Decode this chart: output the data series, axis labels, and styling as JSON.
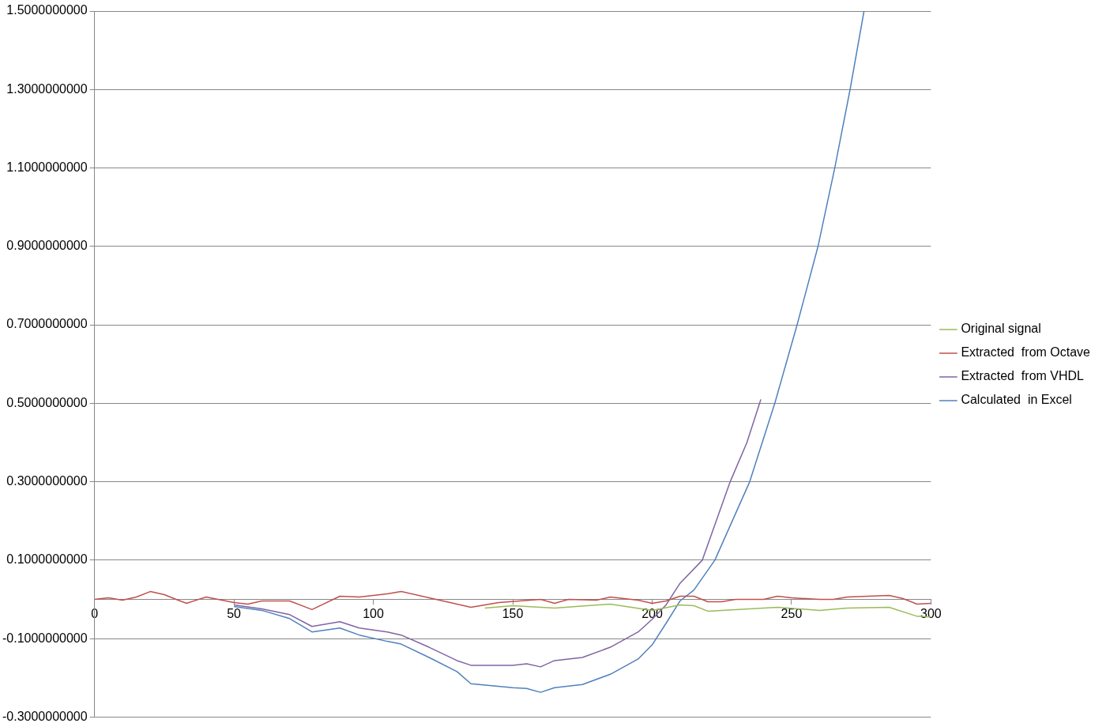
{
  "chart_data": {
    "type": "line",
    "xlim": [
      0,
      300
    ],
    "xticks": [
      0,
      50,
      100,
      150,
      200,
      250,
      300
    ],
    "ylim": [
      -0.3,
      1.5
    ],
    "yticks": [
      {
        "value": -0.3,
        "label": "-0.3000000000"
      },
      {
        "value": -0.1,
        "label": "-0.1000000000"
      },
      {
        "value": 0.1,
        "label": "0.1000000000"
      },
      {
        "value": 0.3,
        "label": "0.3000000000"
      },
      {
        "value": 0.5,
        "label": "0.5000000000"
      },
      {
        "value": 0.7,
        "label": "0.7000000000"
      },
      {
        "value": 0.9,
        "label": "0.9000000000"
      },
      {
        "value": 1.1,
        "label": "1.1000000000"
      },
      {
        "value": 1.3,
        "label": "1.3000000000"
      },
      {
        "value": 1.5,
        "label": "1.5000000000"
      }
    ],
    "grid": "y",
    "legend": "right",
    "marker": "none",
    "line_style": "solid",
    "series": [
      {
        "name": "Original signal",
        "color": "#9bbb59",
        "x": [
          140,
          150,
          165,
          185,
          200,
          210,
          215,
          220,
          230,
          245,
          260,
          270,
          285,
          295,
          300
        ],
        "values": [
          -0.022,
          -0.016,
          -0.022,
          -0.012,
          -0.028,
          -0.014,
          -0.016,
          -0.03,
          -0.026,
          -0.02,
          -0.028,
          -0.022,
          -0.02,
          -0.043,
          -0.045
        ]
      },
      {
        "name": "Extracted  from Octave",
        "color": "#c0504d",
        "x": [
          0,
          5,
          10,
          15,
          20,
          25,
          30,
          33,
          40,
          50,
          55,
          60,
          70,
          78,
          88,
          95,
          105,
          110,
          125,
          135,
          145,
          160,
          165,
          170,
          180,
          185,
          195,
          200,
          205,
          210,
          215,
          220,
          225,
          230,
          240,
          245,
          250,
          260,
          265,
          270,
          285,
          290,
          295,
          300
        ],
        "values": [
          0,
          0.004,
          -0.002,
          0.006,
          0.02,
          0.012,
          -0.002,
          -0.01,
          0.006,
          -0.008,
          -0.012,
          -0.004,
          -0.004,
          -0.026,
          0.008,
          0.006,
          0.014,
          0.02,
          -0.004,
          -0.02,
          -0.008,
          0,
          -0.01,
          0,
          -0.002,
          0.006,
          -0.002,
          -0.01,
          -0.004,
          0.008,
          0.008,
          -0.006,
          -0.006,
          0,
          0,
          0.008,
          0.004,
          0,
          0,
          0.006,
          0.01,
          0.002,
          -0.012,
          -0.01
        ]
      },
      {
        "name": "Extracted  from VHDL",
        "color": "#8064a2",
        "x": [
          50,
          60,
          70,
          78,
          88,
          95,
          105,
          110,
          120,
          130,
          135,
          150,
          155,
          160,
          165,
          175,
          185,
          195,
          200,
          205,
          210,
          218,
          228,
          234,
          239
        ],
        "values": [
          -0.014,
          -0.024,
          -0.039,
          -0.069,
          -0.057,
          -0.073,
          -0.083,
          -0.091,
          -0.122,
          -0.156,
          -0.168,
          -0.168,
          -0.164,
          -0.172,
          -0.156,
          -0.148,
          -0.122,
          -0.083,
          -0.051,
          -0.014,
          0.041,
          0.1,
          0.3,
          0.4,
          0.51
        ]
      },
      {
        "name": "Calculated  in Excel",
        "color": "#4f81bd",
        "x": [
          50,
          60,
          70,
          78,
          88,
          95,
          105,
          110,
          120,
          130,
          135,
          150,
          155,
          160,
          165,
          175,
          185,
          195,
          200,
          205,
          210,
          215,
          222.5,
          235,
          244,
          252,
          259.5,
          265.5,
          271,
          276
        ],
        "values": [
          -0.018,
          -0.028,
          -0.049,
          -0.083,
          -0.073,
          -0.091,
          -0.107,
          -0.114,
          -0.148,
          -0.184,
          -0.215,
          -0.225,
          -0.227,
          -0.237,
          -0.225,
          -0.217,
          -0.191,
          -0.152,
          -0.116,
          -0.061,
          -0.004,
          0.024,
          0.1,
          0.3,
          0.5,
          0.7,
          0.9,
          1.1,
          1.3,
          1.5
        ]
      }
    ]
  }
}
